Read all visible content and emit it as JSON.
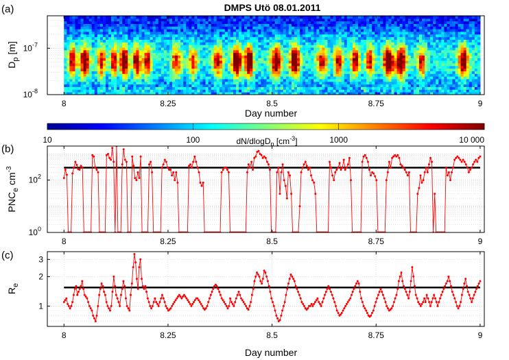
{
  "figure": {
    "title": "DMPS Utö 08.01.2011",
    "panel_labels": [
      "(a)",
      "(b)",
      "(c)"
    ]
  },
  "chart_data": [
    {
      "type": "heatmap",
      "panel": "(a)",
      "ylabel": "D",
      "ylabel_sub": "p",
      "ylabel_unit": "[m]",
      "xlabel": "Day number",
      "x_ticks": [
        "8",
        "8.25",
        "8.5",
        "8.75",
        "9"
      ],
      "xlim": [
        7.96,
        9.01
      ],
      "y_scale": "log",
      "ylim": [
        1e-08,
        5e-07
      ],
      "y_ticks": [
        {
          "value": 1e-08,
          "label": "10",
          "exp": "-8"
        },
        {
          "value": 1e-07,
          "label": "10",
          "exp": "-7"
        }
      ],
      "data_x_range": [
        8.0,
        9.0
      ],
      "colorbar": {
        "label": "dN/dlogD",
        "label_sub": "p",
        "label_unit": "[cm",
        "label_unit_exp": "-3",
        "label_unit_close": "]",
        "scale": "log",
        "range": [
          10,
          10000
        ],
        "ticks": [
          "10",
          "100",
          "1000",
          "10 000"
        ],
        "colors": [
          "#00008f",
          "#0000ff",
          "#0080ff",
          "#00ffff",
          "#80ff80",
          "#ffff00",
          "#ff8000",
          "#ff0000",
          "#800000"
        ]
      },
      "growth_events": [
        {
          "x": 8.02,
          "level": 0.62,
          "width": 0.009
        },
        {
          "x": 8.05,
          "level": 0.7,
          "width": 0.012
        },
        {
          "x": 8.09,
          "level": 0.55,
          "width": 0.01
        },
        {
          "x": 8.12,
          "level": 0.6,
          "width": 0.008
        },
        {
          "x": 8.145,
          "level": 0.85,
          "width": 0.01
        },
        {
          "x": 8.175,
          "level": 0.7,
          "width": 0.009
        },
        {
          "x": 8.2,
          "level": 0.6,
          "width": 0.01
        },
        {
          "x": 8.27,
          "level": 0.5,
          "width": 0.012
        },
        {
          "x": 8.31,
          "level": 0.5,
          "width": 0.01
        },
        {
          "x": 8.37,
          "level": 0.55,
          "width": 0.012
        },
        {
          "x": 8.415,
          "level": 0.8,
          "width": 0.012
        },
        {
          "x": 8.445,
          "level": 0.85,
          "width": 0.01
        },
        {
          "x": 8.51,
          "level": 0.75,
          "width": 0.012
        },
        {
          "x": 8.555,
          "level": 0.8,
          "width": 0.012
        },
        {
          "x": 8.62,
          "level": 0.55,
          "width": 0.012
        },
        {
          "x": 8.66,
          "level": 0.6,
          "width": 0.01
        },
        {
          "x": 8.7,
          "level": 0.6,
          "width": 0.01
        },
        {
          "x": 8.735,
          "level": 0.55,
          "width": 0.01
        },
        {
          "x": 8.78,
          "level": 0.85,
          "width": 0.012
        },
        {
          "x": 8.81,
          "level": 0.8,
          "width": 0.012
        },
        {
          "x": 8.86,
          "level": 0.55,
          "width": 0.01
        },
        {
          "x": 8.96,
          "level": 0.7,
          "width": 0.012
        }
      ]
    },
    {
      "type": "line",
      "panel": "(b)",
      "ylabel": "PNC",
      "ylabel_sub": "e",
      "ylabel_unit": "cm",
      "ylabel_unit_exp": "-3",
      "x_ticks": [
        "8",
        "8.25",
        "8.5",
        "8.75",
        "9"
      ],
      "xlim": [
        7.96,
        9.01
      ],
      "y_scale": "log",
      "ylim": [
        1,
        2000
      ],
      "y_ticks": [
        {
          "value": 1,
          "label": "10",
          "exp": "0"
        },
        {
          "value": 100,
          "label": "10",
          "exp": "2"
        }
      ],
      "reference_level": 300,
      "series": [
        {
          "color": "#ff0000",
          "x_start": 8.0,
          "x_end": 9.0,
          "values": [
            120,
            250,
            160,
            1,
            1,
            1,
            180,
            300,
            500,
            380,
            260,
            250,
            350,
            300,
            1,
            1,
            1,
            1,
            1,
            1,
            900,
            800,
            300,
            250,
            200,
            1,
            1,
            1,
            1,
            1,
            900,
            1000,
            700,
            600,
            1700,
            500,
            1,
            2000,
            1,
            1,
            1,
            400,
            1500,
            600,
            500,
            1,
            1,
            1,
            800,
            350,
            120,
            100,
            200,
            120,
            800,
            1,
            1,
            1,
            1,
            1,
            400,
            500,
            200,
            1,
            1,
            1,
            1,
            1,
            1,
            300,
            400,
            600,
            500,
            300,
            250,
            250,
            150,
            200,
            100,
            200,
            80,
            1,
            1,
            1,
            1,
            1,
            1,
            1,
            350,
            400,
            300,
            500,
            800,
            500,
            300,
            200,
            80,
            60,
            80,
            1,
            1,
            1,
            1,
            1,
            1,
            1,
            1,
            1,
            1,
            1,
            1,
            200,
            250,
            300,
            300,
            250,
            200,
            1,
            1,
            1,
            1,
            1,
            1,
            1,
            1,
            1,
            1,
            1,
            1,
            200,
            400,
            300,
            500,
            250,
            700,
            800,
            1200,
            1300,
            1000,
            900,
            700,
            800,
            700,
            500,
            400,
            250,
            1,
            1,
            1,
            1,
            200,
            300,
            30,
            200,
            400,
            100,
            60,
            20,
            200,
            150,
            30,
            1,
            1,
            1,
            1,
            1,
            10,
            200,
            300,
            400,
            500,
            350,
            250,
            300,
            150,
            100,
            80,
            30,
            1,
            1,
            1,
            1,
            1,
            1,
            1,
            1,
            1,
            500,
            300,
            150,
            100,
            200,
            250,
            300,
            450,
            250,
            300,
            600,
            250,
            300,
            400,
            700,
            100,
            1,
            1,
            1,
            1,
            1,
            1,
            1,
            500,
            800,
            900,
            700,
            500,
            250,
            150,
            200,
            180,
            140,
            100,
            1,
            1,
            1,
            1,
            1,
            1,
            100,
            200,
            500,
            300,
            700,
            800,
            900,
            800,
            900,
            700,
            400,
            350,
            300,
            250,
            200,
            150,
            200,
            1,
            1,
            1,
            1,
            1,
            30,
            50,
            150,
            80,
            100,
            200,
            300,
            200,
            400,
            700,
            500,
            1,
            30,
            1,
            1,
            1,
            1,
            1,
            1,
            1,
            300,
            150,
            200,
            100,
            200,
            300,
            600,
            700,
            800,
            700,
            600,
            500,
            600,
            500,
            400,
            300,
            200,
            250,
            300,
            400,
            500,
            600,
            500,
            700,
            800
          ]
        }
      ]
    },
    {
      "type": "line",
      "panel": "(c)",
      "ylabel": "R",
      "ylabel_sub": "e",
      "xlabel": "Day number",
      "x_ticks": [
        "8",
        "8.25",
        "8.5",
        "8.75",
        "9"
      ],
      "xlim": [
        7.96,
        9.01
      ],
      "y_scale": "log",
      "ylim": [
        0.62,
        3.6
      ],
      "y_ticks": [
        {
          "value": 1,
          "label": "1"
        },
        {
          "value": 2,
          "label": "2"
        },
        {
          "value": 3,
          "label": "3"
        }
      ],
      "reference_level": 1.55,
      "series": [
        {
          "color": "#ff0000",
          "x_start": 8.0,
          "x_end": 9.0,
          "values": [
            1.1,
            1.15,
            1.2,
            1.05,
            1.0,
            0.95,
            1.0,
            1.1,
            1.3,
            1.5,
            1.6,
            1.3,
            1.4,
            1.5,
            1.6,
            1.8,
            1.5,
            1.3,
            1.25,
            1.2,
            1.1,
            1.0,
            0.95,
            0.9,
            0.8,
            0.75,
            0.7,
            0.8,
            1.0,
            1.3,
            1.5,
            1.7,
            1.6,
            1.4,
            1.3,
            1.1,
            1.0,
            0.95,
            0.9,
            1.0,
            1.4,
            2.0,
            1.6,
            1.3,
            1.2,
            1.1,
            1.0,
            1.3,
            1.5,
            1.8,
            1.6,
            1.2,
            1.0,
            0.95,
            0.9,
            1.3,
            1.7,
            2.5,
            3.4,
            2.8,
            1.9,
            1.5,
            2.5,
            3.0,
            1.9,
            1.6,
            1.5,
            1.6,
            1.4,
            1.2,
            1.1,
            1.0,
            0.95,
            1.0,
            1.1,
            1.2,
            1.1,
            1.05,
            1.0,
            1.1,
            1.2,
            1.3,
            1.2,
            1.1,
            1.0,
            0.95,
            0.9,
            0.92,
            0.95,
            1.0,
            1.05,
            1.1,
            1.15,
            1.2,
            1.25,
            1.3,
            1.25,
            1.2,
            1.25,
            1.3,
            1.25,
            1.2,
            1.15,
            1.1,
            1.05,
            1.0,
            1.05,
            1.1,
            1.15,
            1.2,
            1.2,
            1.15,
            1.1,
            1.05,
            1.0,
            0.95,
            0.92,
            0.95,
            1.0,
            1.1,
            1.2,
            1.3,
            1.4,
            1.5,
            1.6,
            1.65,
            1.6,
            1.5,
            1.4,
            1.3,
            1.2,
            1.15,
            1.1,
            1.05,
            1.0,
            0.95,
            1.0,
            1.2,
            1.1,
            1.05,
            1.0,
            1.1,
            1.2,
            1.3,
            1.4,
            1.3,
            1.2,
            1.15,
            1.1,
            1.05,
            1.0,
            0.95,
            0.92,
            1.0,
            1.1,
            1.3,
            1.5,
            1.8,
            2.0,
            2.2,
            2.1,
            2.0,
            1.8,
            1.7,
            1.9,
            2.3,
            2.2,
            2.0,
            1.8,
            1.6,
            1.4,
            1.2,
            1.1,
            1.0,
            0.9,
            0.8,
            0.75,
            0.7,
            0.72,
            0.8,
            0.9,
            1.0,
            1.1,
            1.3,
            1.5,
            1.7,
            1.9,
            2.1,
            2.0,
            1.9,
            1.8,
            1.6,
            1.5,
            1.4,
            1.3,
            1.2,
            1.1,
            1.05,
            1.0,
            0.95,
            0.92,
            0.95,
            1.0,
            1.0,
            1.05,
            1.0,
            1.05,
            1.1,
            1.15,
            1.2,
            1.1,
            1.05,
            1.0,
            1.1,
            1.2,
            1.3,
            1.4,
            1.5,
            1.6,
            1.5,
            1.4,
            1.3,
            1.2,
            1.1,
            1.0,
            0.9,
            0.85,
            0.8,
            0.82,
            0.85,
            0.9,
            0.95,
            1.0,
            1.05,
            1.1,
            1.15,
            1.2,
            1.3,
            1.4,
            1.5,
            1.6,
            1.7,
            1.8,
            1.7,
            1.4,
            1.2,
            1.1,
            1.0,
            0.95,
            0.9,
            0.85,
            0.8,
            0.78,
            0.8,
            0.85,
            0.9,
            1.0,
            1.1,
            1.2,
            1.3,
            1.4,
            1.5,
            1.4,
            1.3,
            1.2,
            1.1,
            1.0,
            0.95,
            0.9,
            0.92,
            0.95,
            1.0,
            1.1,
            1.2,
            1.3,
            1.5,
            1.8,
            2.0,
            2.2,
            1.8,
            1.6,
            1.5,
            1.4,
            1.3,
            1.2,
            1.4,
            1.8,
            2.5,
            2.0,
            1.6,
            1.3,
            1.2,
            1.1,
            1.05,
            1.0,
            1.05,
            1.1,
            1.2,
            1.1,
            1.3,
            1.2,
            1.1,
            1.0,
            1.1,
            1.2,
            1.3,
            1.2,
            1.1,
            1.0,
            1.1,
            1.2,
            1.3,
            1.4,
            1.5,
            1.6,
            1.7,
            1.8,
            2.0,
            1.8,
            1.6,
            1.4,
            1.3,
            1.2,
            1.1,
            1.0,
            0.95,
            1.0,
            1.1,
            1.3,
            1.5,
            1.7,
            1.9,
            1.6,
            1.4,
            1.3,
            1.2,
            1.1,
            1.2,
            1.3,
            1.4,
            1.5,
            1.6,
            1.7,
            1.8
          ]
        }
      ]
    }
  ]
}
